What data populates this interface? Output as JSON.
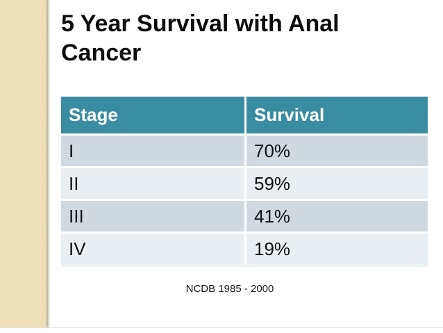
{
  "slide": {
    "title_line1": "5 Year Survival with Anal",
    "title_line2": "Cancer",
    "source_note": "NCDB 1985 - 2000"
  },
  "table": {
    "headers": [
      "Stage",
      "Survival"
    ],
    "rows": [
      {
        "stage": "I",
        "survival": "70%"
      },
      {
        "stage": "II",
        "survival": "59%"
      },
      {
        "stage": "III",
        "survival": "41%"
      },
      {
        "stage": "IV",
        "survival": "19%"
      }
    ]
  },
  "colors": {
    "header_bg": "#3A8CA1",
    "header_text": "#FFFFFF",
    "row_odd_bg": "#CFD9DF",
    "row_even_bg": "#E8EEF1",
    "sidebar_light": "#F1E5C4",
    "sidebar_dark": "#E9DAAC"
  }
}
